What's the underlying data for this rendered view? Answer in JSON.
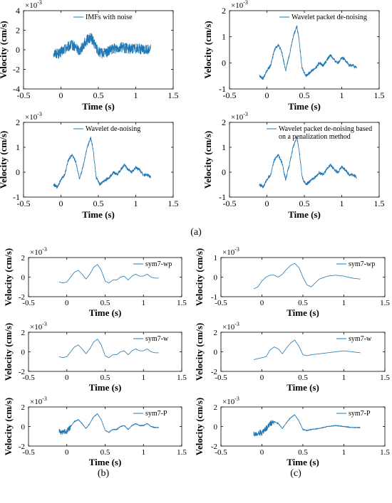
{
  "figure": {
    "line_color": "#1f77b4",
    "panel_labels": [
      "(a)",
      "(b)",
      "(c)"
    ]
  },
  "chart_data": [
    {
      "type": "line",
      "xlabel": "Time (s)",
      "ylabel": "Velocity (cm/s)",
      "yexp": "×10^-3",
      "xlim": [
        -0.5,
        1.5
      ],
      "ylim": [
        -4,
        4
      ],
      "xticks": [
        "-0.5",
        "0",
        "0.5",
        "1",
        "1.5"
      ],
      "yticks": [
        "-4",
        "-2",
        "0",
        "2",
        "4"
      ],
      "legend_placement": "top-right",
      "series": [
        {
          "name": "IMFs with noise",
          "noise": 0.55,
          "x": [
            -0.1,
            -0.02,
            0.05,
            0.1,
            0.15,
            0.2,
            0.25,
            0.3,
            0.35,
            0.4,
            0.45,
            0.5,
            0.55,
            0.6,
            0.7,
            0.8,
            0.9,
            1.0,
            1.1,
            1.2
          ],
          "y": [
            -0.3,
            -0.4,
            0.1,
            0.3,
            0.5,
            0.2,
            -0.1,
            0.5,
            1.0,
            1.3,
            0.6,
            -0.2,
            -0.4,
            -0.3,
            0.1,
            0.3,
            0.1,
            0.2,
            0.0,
            0.1
          ]
        }
      ]
    },
    {
      "type": "line",
      "xlabel": "Time (s)",
      "ylabel": "Velocity (cm/s)",
      "yexp": "×10^-3",
      "xlim": [
        -0.5,
        1.5
      ],
      "ylim": [
        -1,
        2
      ],
      "xticks": [
        "-0.5",
        "0",
        "0.5",
        "1",
        "1.5"
      ],
      "yticks": [
        "-1",
        "0",
        "1",
        "2"
      ],
      "legend_placement": "top-right",
      "series": [
        {
          "name": "Wavelet packet de-noising",
          "noise": 0.06,
          "x": [
            -0.1,
            -0.05,
            0.0,
            0.05,
            0.1,
            0.15,
            0.2,
            0.25,
            0.3,
            0.35,
            0.4,
            0.43,
            0.47,
            0.52,
            0.6,
            0.65,
            0.7,
            0.75,
            0.8,
            0.85,
            0.9,
            0.95,
            1.0,
            1.05,
            1.1,
            1.15,
            1.2
          ],
          "y": [
            -0.5,
            -0.6,
            -0.3,
            -0.1,
            0.5,
            0.7,
            0.4,
            -0.3,
            0.3,
            1.0,
            1.4,
            0.9,
            -0.2,
            -0.5,
            -0.3,
            -0.2,
            0.0,
            -0.1,
            0.1,
            0.3,
            0.1,
            0.0,
            0.2,
            0.1,
            -0.1,
            -0.1,
            -0.2
          ]
        }
      ]
    },
    {
      "type": "line",
      "xlabel": "Time (s)",
      "ylabel": "Velocity (cm/s)",
      "yexp": "×10^-3",
      "xlim": [
        -0.5,
        1.5
      ],
      "ylim": [
        -1,
        2
      ],
      "xticks": [
        "-0.5",
        "0",
        "0.5",
        "1",
        "1.5"
      ],
      "yticks": [
        "-1",
        "0",
        "1",
        "2"
      ],
      "legend_placement": "top-right",
      "series": [
        {
          "name": "Wavelet de-noising",
          "noise": 0.06,
          "x": [
            -0.1,
            -0.05,
            0.0,
            0.05,
            0.1,
            0.15,
            0.2,
            0.25,
            0.3,
            0.35,
            0.4,
            0.43,
            0.47,
            0.52,
            0.6,
            0.65,
            0.7,
            0.75,
            0.8,
            0.85,
            0.9,
            0.95,
            1.0,
            1.05,
            1.1,
            1.15,
            1.2
          ],
          "y": [
            -0.5,
            -0.6,
            -0.3,
            -0.1,
            0.5,
            0.7,
            0.4,
            -0.3,
            0.3,
            1.0,
            1.4,
            0.9,
            -0.2,
            -0.5,
            -0.3,
            -0.2,
            0.0,
            -0.1,
            0.1,
            0.3,
            0.1,
            0.0,
            0.2,
            0.1,
            -0.1,
            -0.1,
            -0.2
          ]
        }
      ]
    },
    {
      "type": "line",
      "xlabel": "Time (s)",
      "ylabel": "Velocity (cm/s)",
      "yexp": "×10^-3",
      "xlim": [
        -0.5,
        1.5
      ],
      "ylim": [
        -1,
        2
      ],
      "xticks": [
        "-0.5",
        "0",
        "0.5",
        "1",
        "1.5"
      ],
      "yticks": [
        "-1",
        "0",
        "1",
        "2"
      ],
      "legend_placement": "top-right",
      "series": [
        {
          "name": "Wavelet packet de-noising based on a penalization method",
          "noise": 0.06,
          "x": [
            -0.1,
            -0.05,
            0.0,
            0.05,
            0.1,
            0.15,
            0.2,
            0.25,
            0.3,
            0.35,
            0.4,
            0.43,
            0.47,
            0.52,
            0.6,
            0.65,
            0.7,
            0.75,
            0.8,
            0.85,
            0.9,
            0.95,
            1.0,
            1.05,
            1.1,
            1.15,
            1.2
          ],
          "y": [
            -0.5,
            -0.6,
            -0.3,
            -0.1,
            0.5,
            0.7,
            0.4,
            -0.3,
            0.3,
            1.0,
            1.4,
            0.9,
            -0.2,
            -0.5,
            -0.3,
            -0.2,
            0.0,
            -0.1,
            0.1,
            0.3,
            0.1,
            0.0,
            0.2,
            0.1,
            -0.1,
            -0.1,
            -0.2
          ]
        }
      ]
    },
    {
      "type": "line",
      "xlabel": "Time (s)",
      "ylabel": "Velocity (cm/s)",
      "yexp": "×10^-3",
      "xlim": [
        -0.5,
        1.5
      ],
      "ylim": [
        -2,
        2
      ],
      "xticks": [
        "-0.5",
        "0",
        "0.5",
        "1",
        "1.5"
      ],
      "yticks": [
        "-2",
        "0",
        "2"
      ],
      "legend_placement": "top-right",
      "series": [
        {
          "name": "sym7-wp",
          "noise": 0,
          "x": [
            -0.1,
            -0.05,
            0.0,
            0.05,
            0.1,
            0.15,
            0.2,
            0.25,
            0.3,
            0.35,
            0.4,
            0.45,
            0.5,
            0.55,
            0.6,
            0.65,
            0.7,
            0.75,
            0.8,
            0.85,
            0.9,
            0.95,
            1.0,
            1.05,
            1.1,
            1.15,
            1.2
          ],
          "y": [
            -0.5,
            -0.6,
            -0.5,
            0.0,
            0.5,
            0.7,
            0.3,
            -0.2,
            0.3,
            1.0,
            1.3,
            0.7,
            -0.4,
            -0.6,
            -0.3,
            -0.3,
            0.0,
            0.1,
            -0.3,
            0.1,
            0.3,
            0.1,
            0.1,
            0.3,
            0.0,
            -0.1,
            -0.1
          ]
        }
      ]
    },
    {
      "type": "line",
      "xlabel": "Time (s)",
      "ylabel": "Velocity (cm/s)",
      "yexp": "×10^-3",
      "xlim": [
        -0.5,
        1.5
      ],
      "ylim": [
        -1,
        1
      ],
      "xticks": [
        "-0.5",
        "0",
        "0.5",
        "1",
        "1.5"
      ],
      "yticks": [
        "-1",
        "0",
        "1"
      ],
      "legend_placement": "top-right",
      "series": [
        {
          "name": "sym7-wp",
          "noise": 0,
          "x": [
            -0.1,
            -0.05,
            0.0,
            0.05,
            0.1,
            0.15,
            0.2,
            0.25,
            0.3,
            0.35,
            0.4,
            0.45,
            0.5,
            0.55,
            0.6,
            0.7,
            0.8,
            0.9,
            1.0,
            1.1,
            1.2
          ],
          "y": [
            -0.6,
            -0.5,
            -0.2,
            0.0,
            0.1,
            0.1,
            0.0,
            0.15,
            0.4,
            0.6,
            0.7,
            0.5,
            0.0,
            -0.4,
            -0.5,
            -0.1,
            0.05,
            0.1,
            0.05,
            -0.05,
            -0.1
          ]
        }
      ]
    },
    {
      "type": "line",
      "xlabel": "Time (s)",
      "ylabel": "Velocity (cm/s)",
      "yexp": "×10^-3",
      "xlim": [
        -0.5,
        1.5
      ],
      "ylim": [
        -2,
        2
      ],
      "xticks": [
        "-0.5",
        "0",
        "0.5",
        "1",
        "1.5"
      ],
      "yticks": [
        "-2",
        "0",
        "2"
      ],
      "legend_placement": "top-right",
      "series": [
        {
          "name": "sym7-w",
          "noise": 0,
          "x": [
            -0.1,
            -0.05,
            0.0,
            0.05,
            0.1,
            0.15,
            0.2,
            0.25,
            0.3,
            0.35,
            0.4,
            0.45,
            0.5,
            0.55,
            0.6,
            0.65,
            0.7,
            0.75,
            0.8,
            0.85,
            0.9,
            0.95,
            1.0,
            1.05,
            1.1,
            1.15,
            1.2
          ],
          "y": [
            -0.5,
            -0.6,
            -0.5,
            0.0,
            0.5,
            0.7,
            0.3,
            -0.2,
            0.3,
            1.0,
            1.3,
            0.7,
            -0.4,
            -0.6,
            -0.3,
            -0.3,
            0.0,
            0.1,
            -0.3,
            0.1,
            0.3,
            0.1,
            0.1,
            0.3,
            0.0,
            -0.1,
            -0.1
          ]
        }
      ]
    },
    {
      "type": "line",
      "xlabel": "Time (s)",
      "ylabel": "Velocity (cm/s)",
      "yexp": "×10^-3",
      "xlim": [
        -0.5,
        1.5
      ],
      "ylim": [
        -2,
        2
      ],
      "xticks": [
        "-0.5",
        "0",
        "0.5",
        "1",
        "1.5"
      ],
      "yticks": [
        "-2",
        "0",
        "2"
      ],
      "legend_placement": "top-right",
      "series": [
        {
          "name": "sym7-w",
          "noise": 0,
          "x": [
            -0.1,
            -0.05,
            0.0,
            0.05,
            0.1,
            0.15,
            0.2,
            0.25,
            0.3,
            0.35,
            0.4,
            0.45,
            0.5,
            0.55,
            0.6,
            0.7,
            0.8,
            0.9,
            1.0,
            1.1,
            1.2
          ],
          "y": [
            -0.8,
            -0.7,
            -0.6,
            -0.5,
            0.2,
            0.5,
            0.3,
            -0.2,
            0.4,
            0.9,
            1.2,
            0.6,
            -0.3,
            -0.4,
            -0.3,
            -0.2,
            -0.1,
            0.0,
            0.1,
            0.0,
            -0.1
          ]
        }
      ]
    },
    {
      "type": "line",
      "xlabel": "Time (s)",
      "ylabel": "Velocity (cm/s)",
      "yexp": "×10^-3",
      "xlim": [
        -0.5,
        1.5
      ],
      "ylim": [
        -2,
        2
      ],
      "xticks": [
        "-0.5",
        "0",
        "0.5",
        "1",
        "1.5"
      ],
      "yticks": [
        "-2",
        "0",
        "2"
      ],
      "legend_placement": "top-right",
      "series": [
        {
          "name": "sym7-P",
          "noise": 0.3,
          "noise_until": 0.05,
          "x": [
            -0.1,
            -0.05,
            0.0,
            0.05,
            0.1,
            0.15,
            0.2,
            0.25,
            0.3,
            0.35,
            0.4,
            0.45,
            0.5,
            0.55,
            0.6,
            0.65,
            0.7,
            0.75,
            0.8,
            0.85,
            0.9,
            0.95,
            1.0,
            1.05,
            1.1,
            1.15,
            1.2
          ],
          "y": [
            -0.5,
            -0.6,
            -0.5,
            0.0,
            0.5,
            0.7,
            0.3,
            -0.2,
            0.3,
            1.0,
            1.3,
            0.7,
            -0.4,
            -0.6,
            -0.3,
            -0.3,
            0.0,
            0.1,
            -0.3,
            0.1,
            0.3,
            0.1,
            0.1,
            0.3,
            0.0,
            -0.1,
            -0.1
          ]
        }
      ]
    },
    {
      "type": "line",
      "xlabel": "Time (s)",
      "ylabel": "Velocity (cm/s)",
      "yexp": "×10^-3",
      "xlim": [
        -0.5,
        1.5
      ],
      "ylim": [
        -2,
        2
      ],
      "xticks": [
        "-0.5",
        "0",
        "0.5",
        "1",
        "1.5"
      ],
      "yticks": [
        "-2",
        "0",
        "2"
      ],
      "legend_placement": "top-right",
      "series": [
        {
          "name": "sym7-P",
          "noise": 0.3,
          "noise_until": 0.15,
          "x": [
            -0.1,
            -0.05,
            0.0,
            0.05,
            0.1,
            0.15,
            0.2,
            0.25,
            0.3,
            0.35,
            0.4,
            0.45,
            0.5,
            0.55,
            0.6,
            0.7,
            0.8,
            0.9,
            1.0,
            1.1,
            1.2
          ],
          "y": [
            -0.8,
            -0.7,
            -0.6,
            -0.2,
            0.3,
            0.5,
            0.3,
            -0.2,
            0.4,
            0.9,
            1.2,
            0.6,
            -0.3,
            -0.4,
            -0.3,
            -0.2,
            0.0,
            0.1,
            0.0,
            -0.1,
            -0.1
          ]
        }
      ]
    }
  ]
}
